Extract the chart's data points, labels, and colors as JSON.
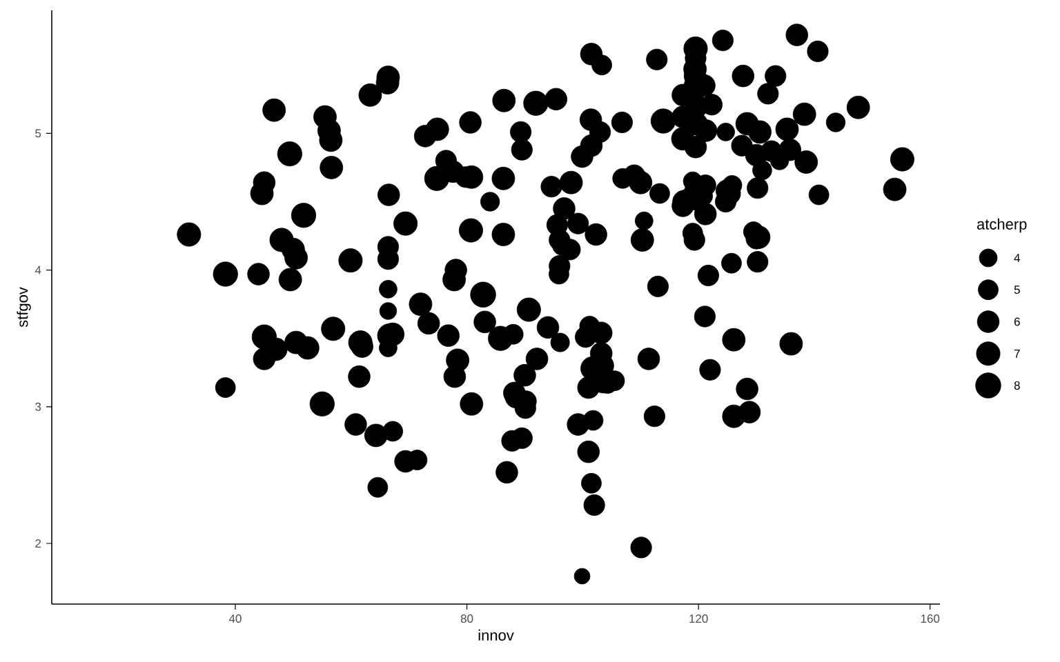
{
  "chart_data": {
    "type": "bubble",
    "xlabel": "innov",
    "ylabel": "stfgov",
    "legend_title": "atcherp",
    "color": "#000000",
    "marker": "circle",
    "xlim": [
      8.3,
      161.7
    ],
    "ylim": [
      1.556,
      5.9
    ],
    "xticks": [
      40,
      80,
      120,
      160
    ],
    "yticks": [
      2,
      3,
      4,
      5
    ],
    "size_legend": [
      4,
      5,
      6,
      7,
      8
    ],
    "x": [
      32,
      38.3,
      38.3,
      44,
      45,
      44.6,
      46.7,
      45,
      45,
      47,
      48,
      49.4,
      50,
      50.5,
      49.5,
      50.5,
      51.8,
      52.5,
      55,
      55.5,
      56.2,
      56.5,
      56.6,
      56.9,
      59.9,
      60.8,
      61.4,
      61.6,
      61.9,
      63.3,
      64.3,
      64.6,
      66.4,
      66.3,
      66.5,
      66.4,
      66.4,
      66.4,
      66.4,
      66.4,
      66.6,
      67.2,
      67.2,
      69.4,
      69.4,
      71.4,
      72,
      72.8,
      73.4,
      74.9,
      74.8,
      76.4,
      77.6,
      76.8,
      77.8,
      78.1,
      78.4,
      77.9,
      79.8,
      80.8,
      80.6,
      80.7,
      80.8,
      82.8,
      83.1,
      84,
      85.8,
      86.4,
      86.3,
      86.3,
      86.9,
      88,
      88.2,
      88.5,
      87.8,
      89.5,
      89.3,
      89.5,
      90,
      90.2,
      90.1,
      90.7,
      91.9,
      92.1,
      94,
      94.6,
      95.4,
      95.6,
      96,
      96.5,
      96,
      95.9,
      96.1,
      96.8,
      98,
      97.8,
      99.2,
      99.2,
      99.9,
      99.9,
      100.5,
      101,
      101.5,
      101.4,
      101.5,
      101.2,
      101.7,
      101,
      102.3,
      101.5,
      101.8,
      102,
      103,
      103.3,
      103.2,
      103.2,
      103.4,
      103.5,
      104.3,
      105.5,
      106.8,
      106.9,
      108.9,
      110,
      110.6,
      110.3,
      110.1,
      111.4,
      112.4,
      112.8,
      113.3,
      113,
      113.9,
      117.3,
      117.3,
      117.3,
      117.5,
      117.3,
      118.3,
      119,
      119,
      119.3,
      119.5,
      119.5,
      119.4,
      119.4,
      119.4,
      119.7,
      119.6,
      119.5,
      119.5,
      119.9,
      121,
      121.3,
      121.2,
      120.8,
      121.2,
      121.1,
      121.7,
      122,
      122.3,
      124.2,
      124.7,
      124.7,
      124.9,
      125.3,
      125.8,
      125.7,
      126.1,
      126.1,
      127.5,
      127.7,
      128.4,
      128.4,
      128.8,
      129.5,
      130,
      130.4,
      130,
      130.6,
      130.2,
      130.2,
      131,
      132,
      132.6,
      133.3,
      134,
      135.3,
      135.8,
      136,
      137,
      138.3,
      138.6,
      140.6,
      140.8,
      143.7,
      147.6,
      153.9,
      155.2
    ],
    "values": [
      4.26,
      3.97,
      3.14,
      3.97,
      4.64,
      4.56,
      5.17,
      3.51,
      3.35,
      3.42,
      4.22,
      4.85,
      4.15,
      4.09,
      3.93,
      3.47,
      4.4,
      3.43,
      3.02,
      5.12,
      5.02,
      4.95,
      4.75,
      3.57,
      4.07,
      2.87,
      3.22,
      3.47,
      3.44,
      5.28,
      2.79,
      2.41,
      5.41,
      5.37,
      4.55,
      4.17,
      4.08,
      3.86,
      3.7,
      3.43,
      3.52,
      3.53,
      2.82,
      4.34,
      2.6,
      2.61,
      3.75,
      4.98,
      3.61,
      5.03,
      4.67,
      4.8,
      4.72,
      3.52,
      3.93,
      4.0,
      3.34,
      3.22,
      4.68,
      4.68,
      5.08,
      4.29,
      3.02,
      3.82,
      3.62,
      4.5,
      3.5,
      5.24,
      4.67,
      4.26,
      2.52,
      3.53,
      3.1,
      3.07,
      2.75,
      2.77,
      5.01,
      4.88,
      3.23,
      3.04,
      2.99,
      3.71,
      5.22,
      3.35,
      3.58,
      4.61,
      5.25,
      4.33,
      4.22,
      4.18,
      4.03,
      3.97,
      3.47,
      4.45,
      4.64,
      4.15,
      4.34,
      2.87,
      4.83,
      1.76,
      3.51,
      2.67,
      5.58,
      5.1,
      4.91,
      3.59,
      3.28,
      3.14,
      4.26,
      2.44,
      2.9,
      2.28,
      5.01,
      5.5,
      3.54,
      3.39,
      3.3,
      3.18,
      3.17,
      3.19,
      5.08,
      4.67,
      4.69,
      4.64,
      4.36,
      4.22,
      1.97,
      3.35,
      2.93,
      5.54,
      4.56,
      3.88,
      5.09,
      5.28,
      5.12,
      4.96,
      4.5,
      4.47,
      4.52,
      4.65,
      4.27,
      4.22,
      5.62,
      5.55,
      5.47,
      5.42,
      5.35,
      5.2,
      5.07,
      4.9,
      4.58,
      4.51,
      5.35,
      5.02,
      4.62,
      4.54,
      4.41,
      3.66,
      3.96,
      3.27,
      5.21,
      5.68,
      5.01,
      4.5,
      4.58,
      4.56,
      4.62,
      4.05,
      3.49,
      2.93,
      4.91,
      5.42,
      5.07,
      3.13,
      2.96,
      4.28,
      4.23,
      4.24,
      4.84,
      5.01,
      4.6,
      4.06,
      4.73,
      5.29,
      4.87,
      5.42,
      4.8,
      5.03,
      4.88,
      3.46,
      5.72,
      5.14,
      4.79,
      5.6,
      4.55,
      5.08,
      5.19,
      4.59,
      4.81
    ],
    "sizes": [
      7,
      7.5,
      5,
      6,
      6,
      6.5,
      6.5,
      7.5,
      6,
      6.5,
      7,
      7.5,
      6.5,
      6.5,
      6.5,
      6.5,
      7.5,
      6.5,
      7.5,
      6.5,
      6.5,
      6.5,
      6.5,
      7,
      7,
      6,
      6,
      7,
      6,
      6.5,
      6.5,
      5,
      6.5,
      6.5,
      6,
      5.5,
      5.5,
      4,
      3.6,
      4,
      7,
      6.5,
      5,
      7,
      6,
      5,
      6.5,
      6,
      6,
      6.5,
      7.5,
      5.5,
      6,
      6,
      6.5,
      6,
      6.5,
      6,
      5.5,
      6.5,
      6,
      7,
      6.5,
      8,
      6,
      4.5,
      7.5,
      6.5,
      6.5,
      6.5,
      6,
      5,
      6,
      6,
      5.5,
      5.5,
      5.5,
      5.5,
      6,
      5.5,
      5.5,
      7,
      7.5,
      6,
      6,
      5.5,
      6,
      5.5,
      5.5,
      5,
      5.5,
      5,
      4.4,
      6,
      6.5,
      5.5,
      5.5,
      6,
      6,
      3.1,
      5.5,
      6,
      6,
      6,
      6,
      5,
      7,
      6,
      6,
      5,
      5,
      5.5,
      5.5,
      5,
      6,
      6,
      6.5,
      6,
      5,
      5,
      5.5,
      5,
      6,
      6.5,
      4,
      6.5,
      5.5,
      6,
      5.5,
      5.5,
      5,
      5.5,
      7.5,
      6,
      6,
      6.5,
      6.5,
      6,
      5.5,
      4.4,
      5,
      5.5,
      7,
      5.5,
      6.5,
      6,
      6,
      6.5,
      6.5,
      6,
      6,
      5.5,
      6,
      6,
      5.5,
      4.5,
      6,
      5.5,
      5.5,
      5.5,
      5.5,
      5.5,
      4,
      5.5,
      6,
      6.5,
      4.8,
      5,
      6.5,
      6.5,
      5.5,
      6,
      6.5,
      6,
      6,
      5,
      5.5,
      6.5,
      6,
      6.5,
      5.5,
      5.5,
      4.6,
      5.5,
      5.5,
      5.5,
      4.2,
      6.5,
      6,
      6.5,
      6,
      6.5,
      6.5,
      5.5,
      5,
      4.5,
      6.5,
      6.5,
      7
    ]
  }
}
